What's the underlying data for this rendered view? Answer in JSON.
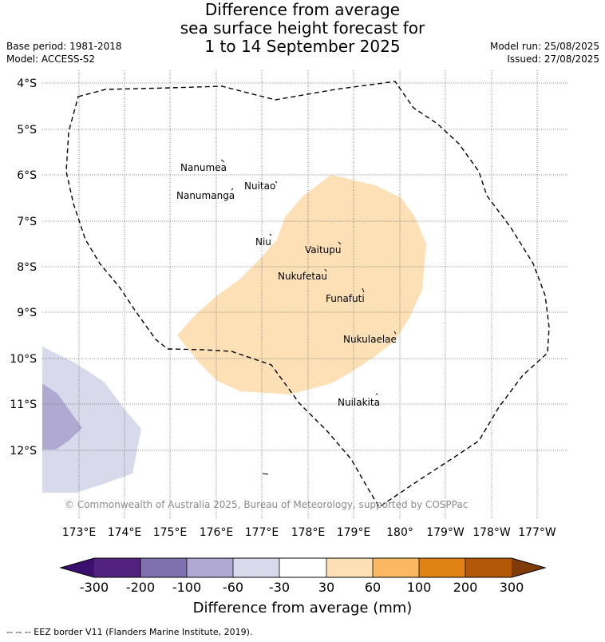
{
  "title": {
    "line1": "Difference from average",
    "line2": "sea surface height forecast for",
    "line3": "1 to 14 September 2025"
  },
  "meta": {
    "base_period": "Base period: 1981-2018",
    "model": "Model: ACCESS-S2",
    "model_run": "Model run: 25/08/2025",
    "issued": "Issued: 27/08/2025"
  },
  "map": {
    "lat_labels": [
      "4°S",
      "5°S",
      "6°S",
      "7°S",
      "8°S",
      "9°S",
      "10°S",
      "11°S",
      "12°S"
    ],
    "lon_labels": [
      "173°E",
      "174°E",
      "175°E",
      "176°E",
      "177°E",
      "178°E",
      "179°E",
      "180°",
      "179°W",
      "178°W",
      "177°W"
    ],
    "places": [
      "Nanumea",
      "Nuitao",
      "Nanumanga",
      "Niu",
      "Vaitupu",
      "Nukufetau",
      "Funafuti",
      "Nukulaelae",
      "Nuilakita"
    ],
    "copyright": "© Commonwealth of Australia 2025, Bureau of Meteorology, supported by COSPPac",
    "anomaly_colors": {
      "positive_30_60": "#fde0b6",
      "negative_60_30": "#d8d9ea",
      "negative_100_60": "#b0aad3"
    }
  },
  "colorbar": {
    "ticks": [
      "-300",
      "-200",
      "-100",
      "-60",
      "-30",
      "30",
      "60",
      "100",
      "200",
      "300"
    ],
    "label": "Difference from average (mm)",
    "colors": [
      "#3b0f6e",
      "#53227f",
      "#7f71ad",
      "#b0aad3",
      "#d8d9ea",
      "#ffffff",
      "#fde0b6",
      "#fdb863",
      "#e08214",
      "#b35806",
      "#7f3b08"
    ]
  },
  "footer": "--  --  -- EEZ border V11 (Flanders Marine Institute, 2019)."
}
